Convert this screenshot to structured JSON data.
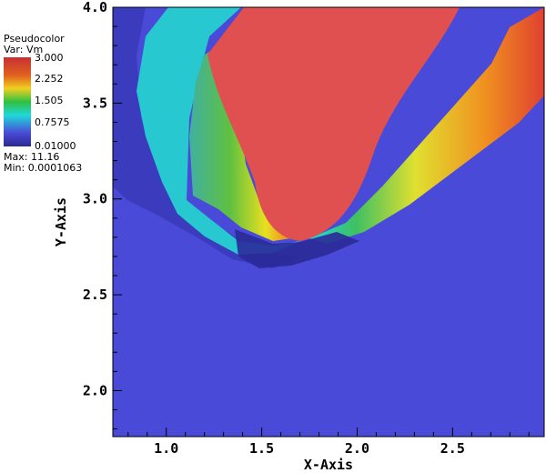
{
  "legend": {
    "title": "Pseudocolor",
    "var": "Var: Vm",
    "levels": [
      "3.000",
      "2.252",
      "1.505",
      "0.7575",
      "0.01000"
    ],
    "max": "Max: 11.16",
    "min": "Min: 0.0001063",
    "colors": [
      "#e85050",
      "#f08020",
      "#f0e020",
      "#30c040",
      "#20e0e0",
      "#5050e0",
      "#3a3ab0"
    ]
  },
  "chart_data": {
    "type": "heatmap",
    "variable": "Vm",
    "xlabel": "X-Axis",
    "ylabel": "Y-Axis",
    "xlim": [
      0.72,
      2.98
    ],
    "ylim": [
      1.76,
      4.0
    ],
    "x_ticks": [
      "1.0",
      "1.5",
      "2.0",
      "2.5"
    ],
    "y_ticks": [
      "2.0",
      "2.5",
      "3.0",
      "3.5",
      "4.0"
    ],
    "colorbar_range": [
      0.01,
      3.0
    ],
    "background_color": "#4a4ad8",
    "saturated_color": "#e05050",
    "body_tip": {
      "x": 1.73,
      "y": 2.78
    }
  }
}
